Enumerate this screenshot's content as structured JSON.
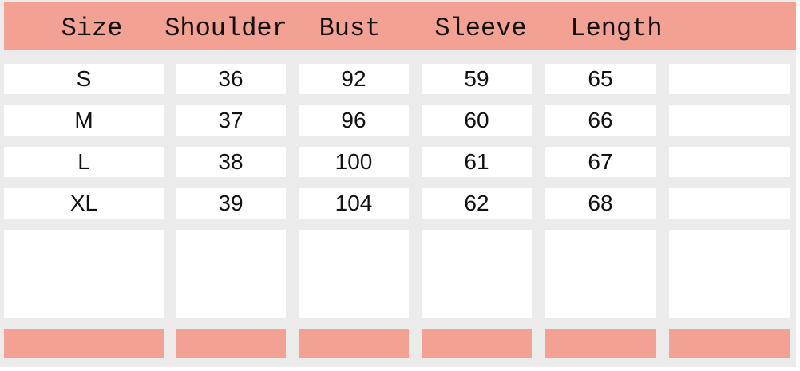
{
  "headers": [
    "Size",
    "Shoulder",
    "Bust",
    "Sleeve",
    "Length"
  ],
  "rows": [
    [
      "S",
      "36",
      "92",
      "59",
      "65"
    ],
    [
      "M",
      "37",
      "96",
      "60",
      "66"
    ],
    [
      "L",
      "38",
      "100",
      "61",
      "67"
    ],
    [
      "XL",
      "39",
      "104",
      "62",
      "68"
    ]
  ],
  "colors": {
    "header": "#f2a193",
    "grid": "#ebebeb",
    "cell": "#ffffff"
  }
}
